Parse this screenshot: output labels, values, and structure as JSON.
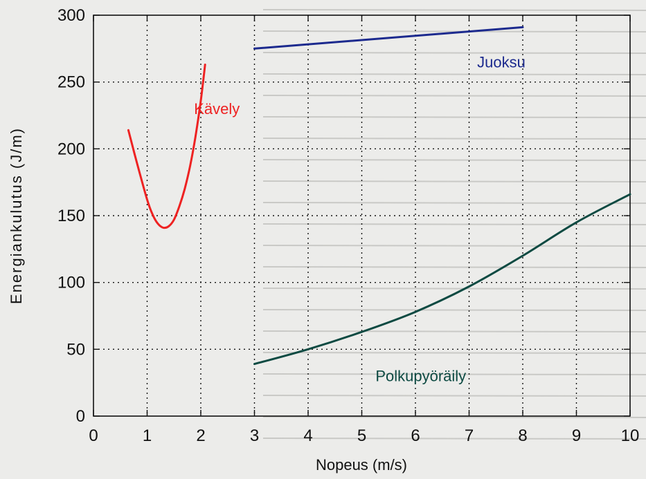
{
  "chart_data": {
    "type": "line",
    "xlabel": "Nopeus (m/s)",
    "ylabel": "Energiankulutus (J/m)",
    "xlim": [
      0,
      10
    ],
    "ylim": [
      0,
      300
    ],
    "x_ticks": [
      "0",
      "1",
      "2",
      "3",
      "4",
      "5",
      "6",
      "7",
      "8",
      "9",
      "10"
    ],
    "y_ticks": [
      "0",
      "50",
      "100",
      "150",
      "200",
      "250",
      "300"
    ],
    "grid": true,
    "legend": "none",
    "series": [
      {
        "name": "Kävely",
        "color": "#ee2222",
        "x": [
          0.65,
          0.8,
          1.0,
          1.1,
          1.2,
          1.3,
          1.4,
          1.5,
          1.6,
          1.7,
          1.8,
          1.9,
          2.0,
          2.08
        ],
        "y": [
          214,
          191,
          162,
          151,
          144,
          141,
          142,
          147,
          157,
          170,
          187,
          209,
          236,
          263
        ]
      },
      {
        "name": "Juoksu",
        "color": "#1c2a8e",
        "x": [
          3.0,
          8.0
        ],
        "y": [
          275,
          291
        ]
      },
      {
        "name": "Polkupyöräily",
        "color": "#0d4a42",
        "x": [
          3.0,
          4.0,
          5.0,
          6.0,
          7.0,
          8.0,
          9.0,
          10.0
        ],
        "y": [
          39,
          50,
          63,
          78,
          97,
          120,
          145,
          166
        ]
      }
    ],
    "annotations": [
      {
        "text": "Kävely",
        "series": 0
      },
      {
        "text": "Juoksu",
        "series": 1
      },
      {
        "text": "Polkupyöräily",
        "series": 2
      }
    ]
  }
}
